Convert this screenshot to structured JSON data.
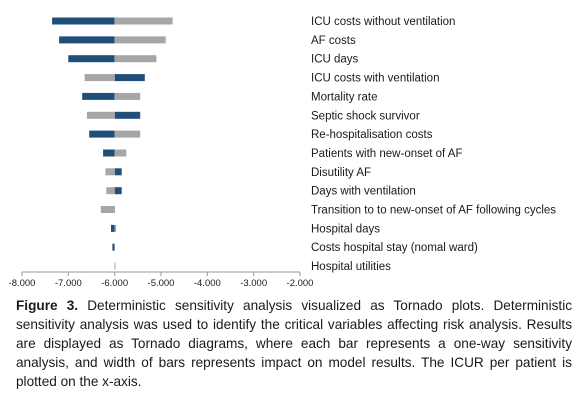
{
  "chart_data": {
    "type": "bar",
    "orientation": "horizontal",
    "variant": "tornado",
    "base_value": -6000,
    "xlim": [
      -8000,
      -2000
    ],
    "x_ticks": [
      "-8.000",
      "-7.000",
      "-6.000",
      "-5.000",
      "-4.000",
      "-3.000",
      "-2.000"
    ],
    "categories": [
      "ICU costs without  ventilation",
      "AF costs",
      "ICU days",
      "ICU costs with ventilation",
      "Mortality rate",
      "Septic shock survivor",
      "Re-hospitalisation costs",
      "Patients with new-onset of AF",
      "Disutility AF",
      "Days with ventilation",
      "Transition to to new-onset of AF following cycles",
      "Hospital days",
      "Costs hospital stay (nomal ward)",
      "Hospital utilities"
    ],
    "series": [
      {
        "color": "#1f4e79",
        "values": [
          -7350,
          -7200,
          -7000,
          -5350,
          -6700,
          -5450,
          -6550,
          -6250,
          -5850,
          -5850,
          -6050,
          -6080,
          -6050,
          -6000
        ]
      },
      {
        "color": "#a6a6a6",
        "values": [
          -4750,
          -4900,
          -5100,
          -6650,
          -5450,
          -6600,
          -5450,
          -5750,
          -6200,
          -6180,
          -6300,
          -5970,
          -6010,
          -6000
        ]
      }
    ],
    "grid": false,
    "legend": "none"
  },
  "caption": {
    "label": "Figure 3.",
    "text": " Deterministic sensitivity analysis visualized as Tornado plots. Deterministic sensitivity analysis was used to identify the critical variables affecting risk analysis. Results are displayed as Tornado diagrams, where each bar represents a one-way sensitivity analysis, and width of bars represents impact on model results. The ICUR per patient is plotted on the x-axis."
  }
}
